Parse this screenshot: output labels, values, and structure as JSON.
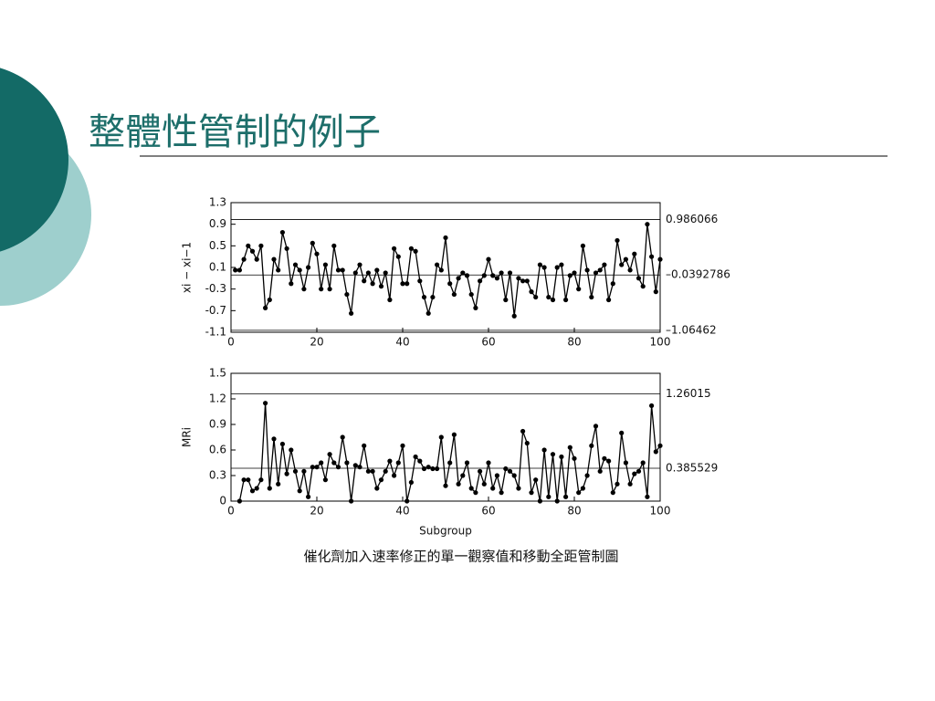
{
  "slide": {
    "title": "整體性管制的例子"
  },
  "caption": "催化劑加入速率修正的單一觀察值和移動全距管制圖",
  "chart_data": [
    {
      "type": "line",
      "y_label": "xi − xi−1",
      "color": "#000000",
      "x": [
        1,
        2,
        3,
        4,
        5,
        6,
        7,
        8,
        9,
        10,
        11,
        12,
        13,
        14,
        15,
        16,
        17,
        18,
        19,
        20,
        21,
        22,
        23,
        24,
        25,
        26,
        27,
        28,
        29,
        30,
        31,
        32,
        33,
        34,
        35,
        36,
        37,
        38,
        39,
        40,
        41,
        42,
        43,
        44,
        45,
        46,
        47,
        48,
        49,
        50,
        51,
        52,
        53,
        54,
        55,
        56,
        57,
        58,
        59,
        60,
        61,
        62,
        63,
        64,
        65,
        66,
        67,
        68,
        69,
        70,
        71,
        72,
        73,
        74,
        75,
        76,
        77,
        78,
        79,
        80,
        81,
        82,
        83,
        84,
        85,
        86,
        87,
        88,
        89,
        90,
        91,
        92,
        93,
        94,
        95,
        96,
        97,
        98,
        99,
        100
      ],
      "values": [
        0.05,
        0.05,
        0.25,
        0.5,
        0.4,
        0.25,
        0.5,
        -0.65,
        -0.5,
        0.25,
        0.05,
        0.75,
        0.45,
        -0.2,
        0.15,
        0.05,
        -0.3,
        0.1,
        0.55,
        0.35,
        -0.3,
        0.15,
        -0.3,
        0.5,
        0.05,
        0.05,
        -0.4,
        -0.75,
        0.0,
        0.15,
        -0.15,
        0.0,
        -0.2,
        0.05,
        -0.25,
        0.0,
        -0.5,
        0.45,
        0.3,
        -0.2,
        -0.2,
        0.45,
        0.4,
        -0.15,
        -0.45,
        -0.75,
        -0.45,
        0.15,
        0.05,
        0.65,
        -0.2,
        -0.4,
        -0.1,
        0.0,
        -0.05,
        -0.4,
        -0.65,
        -0.15,
        -0.05,
        0.25,
        -0.05,
        -0.1,
        0.0,
        -0.5,
        0.0,
        -0.8,
        -0.1,
        -0.15,
        -0.15,
        -0.35,
        -0.45,
        0.15,
        0.1,
        -0.45,
        -0.5,
        0.1,
        0.15,
        -0.5,
        -0.05,
        0.0,
        -0.3,
        0.5,
        0.05,
        -0.45,
        0.0,
        0.05,
        0.15,
        -0.5,
        -0.2,
        0.6,
        0.15,
        0.25,
        0.05,
        0.35,
        -0.1,
        -0.25,
        0.9,
        0.3,
        -0.35,
        0.25
      ],
      "xlim": [
        0,
        100
      ],
      "xticks": [
        0,
        20,
        40,
        60,
        80,
        100
      ],
      "ylim": [
        -1.1,
        1.3
      ],
      "yticks": [
        1.3,
        0.9,
        0.5,
        0.1,
        -0.3,
        -0.7,
        -1.1
      ],
      "control_limits": [
        0.986066,
        {
          "value": -0.0392786,
          "label": "–0.0392786"
        },
        {
          "value": -1.06462,
          "label": "–1.06462"
        }
      ]
    },
    {
      "type": "line",
      "y_label": "MRi",
      "x_label": "Subgroup",
      "color": "#000000",
      "x": [
        2,
        3,
        4,
        5,
        6,
        7,
        8,
        9,
        10,
        11,
        12,
        13,
        14,
        15,
        16,
        17,
        18,
        19,
        20,
        21,
        22,
        23,
        24,
        25,
        26,
        27,
        28,
        29,
        30,
        31,
        32,
        33,
        34,
        35,
        36,
        37,
        38,
        39,
        40,
        41,
        42,
        43,
        44,
        45,
        46,
        47,
        48,
        49,
        50,
        51,
        52,
        53,
        54,
        55,
        56,
        57,
        58,
        59,
        60,
        61,
        62,
        63,
        64,
        65,
        66,
        67,
        68,
        69,
        70,
        71,
        72,
        73,
        74,
        75,
        76,
        77,
        78,
        79,
        80,
        81,
        82,
        83,
        84,
        85,
        86,
        87,
        88,
        89,
        90,
        91,
        92,
        93,
        94,
        95,
        96,
        97,
        98,
        99,
        100
      ],
      "values": [
        0,
        0.25,
        0.25,
        0.12,
        0.15,
        0.25,
        1.15,
        0.15,
        0.73,
        0.2,
        0.67,
        0.32,
        0.6,
        0.35,
        0.12,
        0.35,
        0.05,
        0.4,
        0.4,
        0.45,
        0.25,
        0.55,
        0.45,
        0.4,
        0.75,
        0.45,
        0,
        0.42,
        0.4,
        0.65,
        0.35,
        0.35,
        0.15,
        0.25,
        0.35,
        0.47,
        0.3,
        0.45,
        0.65,
        0,
        0.22,
        0.52,
        0.47,
        0.38,
        0.4,
        0.38,
        0.38,
        0.75,
        0.18,
        0.45,
        0.78,
        0.2,
        0.3,
        0.45,
        0.15,
        0.1,
        0.35,
        0.2,
        0.45,
        0.15,
        0.3,
        0.1,
        0.38,
        0.35,
        0.3,
        0.15,
        0.82,
        0.68,
        0.1,
        0.25,
        0,
        0.6,
        0.05,
        0.55,
        0,
        0.52,
        0.05,
        0.63,
        0.5,
        0.1,
        0.15,
        0.3,
        0.65,
        0.88,
        0.35,
        0.5,
        0.47,
        0.1,
        0.2,
        0.8,
        0.45,
        0.2,
        0.32,
        0.35,
        0.45,
        0.05,
        1.12,
        0.58,
        0.65
      ],
      "xlim": [
        0,
        100
      ],
      "xticks": [
        0,
        20,
        40,
        60,
        80,
        100
      ],
      "ylim": [
        0,
        1.5
      ],
      "yticks": [
        1.5,
        1.2,
        0.9,
        0.6,
        0.3,
        0
      ],
      "control_limits": [
        1.26015,
        0.385529
      ]
    }
  ]
}
